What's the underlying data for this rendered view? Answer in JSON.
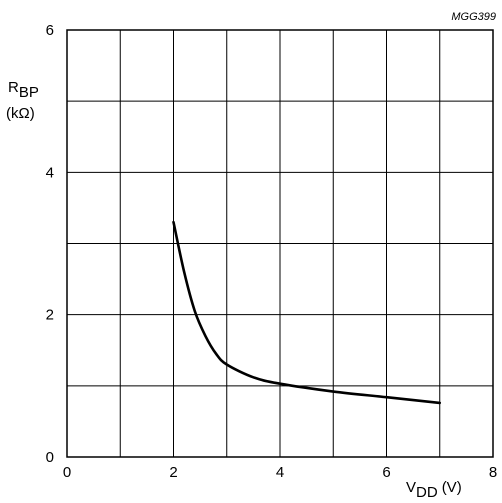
{
  "chart_data": {
    "type": "line",
    "figure_code": "MGG399",
    "x_axis": {
      "label_main": "V",
      "label_sub": "DD",
      "label_unit": "(V)",
      "range": [
        0,
        8
      ],
      "ticks": [
        "0",
        "2",
        "4",
        "6",
        "8"
      ],
      "grid_step": 1
    },
    "y_axis": {
      "label_main": "R",
      "label_sub": "BP",
      "label_unit": "(kΩ)",
      "range": [
        0,
        6
      ],
      "ticks": [
        "0",
        "2",
        "4",
        "6"
      ],
      "grid_step": 1
    },
    "grid": true,
    "series": [
      {
        "color": "#000000",
        "points": [
          [
            2.0,
            3.3
          ],
          [
            2.2,
            2.6
          ],
          [
            2.4,
            2.05
          ],
          [
            2.6,
            1.7
          ],
          [
            2.8,
            1.45
          ],
          [
            3.0,
            1.3
          ],
          [
            3.5,
            1.12
          ],
          [
            4.0,
            1.03
          ],
          [
            5.0,
            0.92
          ],
          [
            6.0,
            0.84
          ],
          [
            7.0,
            0.76
          ]
        ]
      }
    ]
  }
}
